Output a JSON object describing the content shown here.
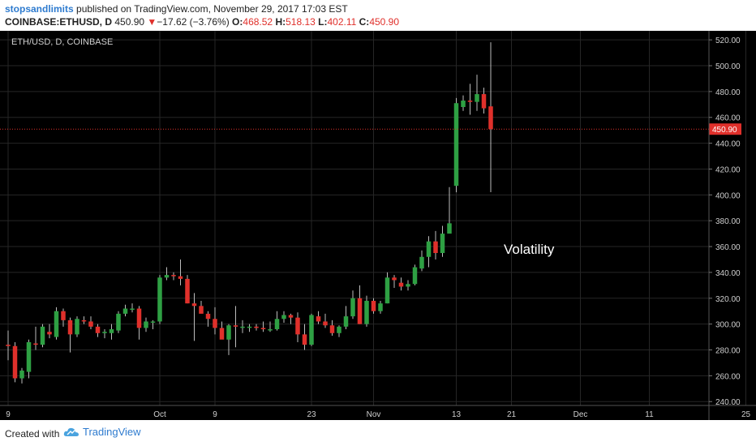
{
  "header": {
    "author": "stopsandlimits",
    "published_text": "published on TradingView.com, November 29, 2017 17:03 EST",
    "symbol": "COINBASE:ETHUSD, D",
    "last": "450.90",
    "change": "−17.62 (−3.76%)",
    "o_label": "O:",
    "o": "468.52",
    "h_label": "H:",
    "h": "518.13",
    "l_label": "L:",
    "l": "402.11",
    "c_label": "C:",
    "c": "450.90"
  },
  "footer": {
    "created_with": "Created with",
    "brand": "TradingView"
  },
  "chart_data": {
    "type": "candlestick",
    "title": "ETH/USD, D, COINBASE",
    "annotation": "Volatility",
    "last_price_label": "450.90",
    "last_price": 450.9,
    "ylim": [
      237,
      527
    ],
    "y_ticks": [
      240,
      260,
      280,
      300,
      320,
      340,
      360,
      380,
      400,
      420,
      440,
      460,
      480,
      500,
      520
    ],
    "x_ticks": [
      {
        "label": "9",
        "day": 0
      },
      {
        "label": "Oct",
        "day": 22
      },
      {
        "label": "9",
        "day": 30
      },
      {
        "label": "23",
        "day": 44
      },
      {
        "label": "Nov",
        "day": 53
      },
      {
        "label": "13",
        "day": 65
      },
      {
        "label": "21",
        "day": 73
      },
      {
        "label": "Dec",
        "day": 83
      },
      {
        "label": "11",
        "day": 93
      },
      {
        "label": "25",
        "day": 107
      }
    ],
    "colors": {
      "up": "#2ea043",
      "down": "#e0302b",
      "background": "#000000",
      "grid": "#262626",
      "last_line": "#e0302b"
    },
    "grid": true,
    "candles": [
      {
        "d": 0,
        "o": 284,
        "h": 295,
        "l": 272,
        "c": 283
      },
      {
        "d": 1,
        "o": 283,
        "h": 286,
        "l": 255,
        "c": 258
      },
      {
        "d": 2,
        "o": 258,
        "h": 266,
        "l": 254,
        "c": 264
      },
      {
        "d": 3,
        "o": 263,
        "h": 288,
        "l": 258,
        "c": 286
      },
      {
        "d": 4,
        "o": 285,
        "h": 298,
        "l": 280,
        "c": 284
      },
      {
        "d": 5,
        "o": 284,
        "h": 300,
        "l": 282,
        "c": 298
      },
      {
        "d": 6,
        "o": 294,
        "h": 300,
        "l": 289,
        "c": 292
      },
      {
        "d": 7,
        "o": 290,
        "h": 313,
        "l": 288,
        "c": 310
      },
      {
        "d": 8,
        "o": 310,
        "h": 312,
        "l": 298,
        "c": 303
      },
      {
        "d": 9,
        "o": 303,
        "h": 305,
        "l": 278,
        "c": 292
      },
      {
        "d": 10,
        "o": 292,
        "h": 306,
        "l": 290,
        "c": 304
      },
      {
        "d": 11,
        "o": 303,
        "h": 306,
        "l": 300,
        "c": 302
      },
      {
        "d": 12,
        "o": 302,
        "h": 306,
        "l": 296,
        "c": 298
      },
      {
        "d": 13,
        "o": 298,
        "h": 300,
        "l": 290,
        "c": 293
      },
      {
        "d": 14,
        "o": 293,
        "h": 296,
        "l": 289,
        "c": 294
      },
      {
        "d": 15,
        "o": 293,
        "h": 300,
        "l": 288,
        "c": 296
      },
      {
        "d": 16,
        "o": 295,
        "h": 310,
        "l": 293,
        "c": 308
      },
      {
        "d": 17,
        "o": 308,
        "h": 315,
        "l": 306,
        "c": 312
      },
      {
        "d": 18,
        "o": 311,
        "h": 316,
        "l": 309,
        "c": 312
      },
      {
        "d": 19,
        "o": 312,
        "h": 314,
        "l": 288,
        "c": 297
      },
      {
        "d": 20,
        "o": 297,
        "h": 305,
        "l": 294,
        "c": 302
      },
      {
        "d": 21,
        "o": 302,
        "h": 303,
        "l": 296,
        "c": 302
      },
      {
        "d": 22,
        "o": 302,
        "h": 338,
        "l": 300,
        "c": 336
      },
      {
        "d": 23,
        "o": 336,
        "h": 344,
        "l": 334,
        "c": 338
      },
      {
        "d": 24,
        "o": 338,
        "h": 340,
        "l": 334,
        "c": 337
      },
      {
        "d": 25,
        "o": 337,
        "h": 350,
        "l": 330,
        "c": 335
      },
      {
        "d": 26,
        "o": 335,
        "h": 338,
        "l": 316,
        "c": 316
      },
      {
        "d": 27,
        "o": 316,
        "h": 324,
        "l": 287,
        "c": 314
      },
      {
        "d": 28,
        "o": 314,
        "h": 318,
        "l": 309,
        "c": 308
      },
      {
        "d": 29,
        "o": 308,
        "h": 310,
        "l": 298,
        "c": 304
      },
      {
        "d": 30,
        "o": 304,
        "h": 313,
        "l": 292,
        "c": 297
      },
      {
        "d": 31,
        "o": 297,
        "h": 302,
        "l": 290,
        "c": 288
      },
      {
        "d": 32,
        "o": 288,
        "h": 300,
        "l": 276,
        "c": 299
      },
      {
        "d": 33,
        "o": 299,
        "h": 314,
        "l": 282,
        "c": 298
      },
      {
        "d": 34,
        "o": 298,
        "h": 303,
        "l": 293,
        "c": 298
      },
      {
        "d": 35,
        "o": 298,
        "h": 300,
        "l": 294,
        "c": 298
      },
      {
        "d": 36,
        "o": 298,
        "h": 300,
        "l": 295,
        "c": 297
      },
      {
        "d": 37,
        "o": 297,
        "h": 302,
        "l": 294,
        "c": 296
      },
      {
        "d": 38,
        "o": 296,
        "h": 302,
        "l": 294,
        "c": 296
      },
      {
        "d": 39,
        "o": 296,
        "h": 310,
        "l": 295,
        "c": 304
      },
      {
        "d": 40,
        "o": 304,
        "h": 310,
        "l": 301,
        "c": 307
      },
      {
        "d": 41,
        "o": 307,
        "h": 308,
        "l": 300,
        "c": 305
      },
      {
        "d": 42,
        "o": 305,
        "h": 309,
        "l": 286,
        "c": 292
      },
      {
        "d": 43,
        "o": 292,
        "h": 300,
        "l": 280,
        "c": 284
      },
      {
        "d": 44,
        "o": 284,
        "h": 308,
        "l": 283,
        "c": 307
      },
      {
        "d": 45,
        "o": 306,
        "h": 310,
        "l": 300,
        "c": 302
      },
      {
        "d": 46,
        "o": 302,
        "h": 308,
        "l": 297,
        "c": 299
      },
      {
        "d": 47,
        "o": 299,
        "h": 303,
        "l": 291,
        "c": 293
      },
      {
        "d": 48,
        "o": 293,
        "h": 299,
        "l": 290,
        "c": 298
      },
      {
        "d": 49,
        "o": 298,
        "h": 314,
        "l": 296,
        "c": 306
      },
      {
        "d": 50,
        "o": 306,
        "h": 326,
        "l": 304,
        "c": 320
      },
      {
        "d": 51,
        "o": 320,
        "h": 330,
        "l": 300,
        "c": 300
      },
      {
        "d": 52,
        "o": 300,
        "h": 322,
        "l": 298,
        "c": 318
      },
      {
        "d": 53,
        "o": 318,
        "h": 320,
        "l": 308,
        "c": 310
      },
      {
        "d": 54,
        "o": 310,
        "h": 318,
        "l": 308,
        "c": 316
      },
      {
        "d": 55,
        "o": 316,
        "h": 340,
        "l": 316,
        "c": 336
      },
      {
        "d": 56,
        "o": 336,
        "h": 338,
        "l": 328,
        "c": 334
      },
      {
        "d": 57,
        "o": 332,
        "h": 336,
        "l": 326,
        "c": 329
      },
      {
        "d": 58,
        "o": 329,
        "h": 334,
        "l": 326,
        "c": 331
      },
      {
        "d": 59,
        "o": 331,
        "h": 346,
        "l": 330,
        "c": 344
      },
      {
        "d": 60,
        "o": 343,
        "h": 357,
        "l": 341,
        "c": 352
      },
      {
        "d": 61,
        "o": 352,
        "h": 368,
        "l": 344,
        "c": 364
      },
      {
        "d": 62,
        "o": 364,
        "h": 372,
        "l": 350,
        "c": 355
      },
      {
        "d": 63,
        "o": 355,
        "h": 376,
        "l": 352,
        "c": 370
      },
      {
        "d": 64,
        "o": 370,
        "h": 406,
        "l": 372,
        "c": 378
      },
      {
        "d": 65,
        "o": 407,
        "h": 475,
        "l": 402,
        "c": 471
      },
      {
        "d": 66,
        "o": 468,
        "h": 477,
        "l": 465,
        "c": 473
      },
      {
        "d": 67,
        "o": 473,
        "h": 486,
        "l": 462,
        "c": 472
      },
      {
        "d": 68,
        "o": 472,
        "h": 493,
        "l": 465,
        "c": 478
      },
      {
        "d": 69,
        "o": 478,
        "h": 483,
        "l": 463,
        "c": 467
      },
      {
        "d": 70,
        "o": 468.52,
        "h": 518.13,
        "l": 402.11,
        "c": 450.9
      }
    ]
  }
}
